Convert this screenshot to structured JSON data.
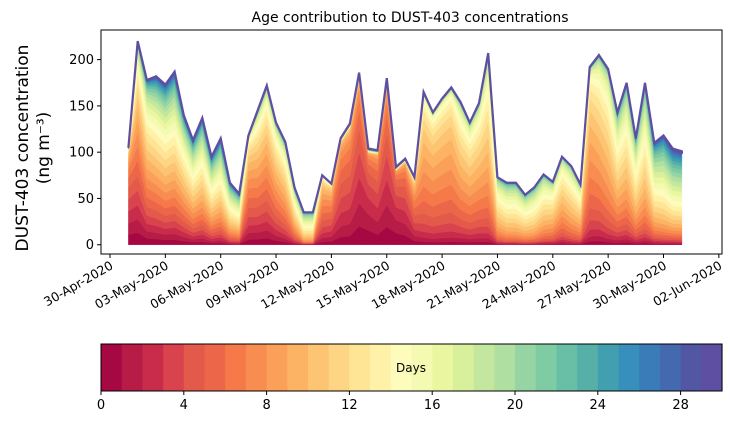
{
  "chart_data": {
    "type": "area",
    "stacked": true,
    "title": "Age contribution to DUST-403 concentrations",
    "ylabel_line1": "DUST-403 concentration",
    "ylabel_line2": "(ng m⁻³)",
    "xlabel": "",
    "ylim": [
      -10,
      232
    ],
    "yticks": [
      0,
      50,
      100,
      150,
      200
    ],
    "x_origin_date": "30-Apr-2020",
    "xlim_days": [
      -0.5,
      33.1
    ],
    "xticks": [
      {
        "day": 0,
        "label": "30-Apr-2020"
      },
      {
        "day": 3,
        "label": "03-May-2020"
      },
      {
        "day": 6,
        "label": "06-May-2020"
      },
      {
        "day": 9,
        "label": "09-May-2020"
      },
      {
        "day": 12,
        "label": "12-May-2020"
      },
      {
        "day": 15,
        "label": "15-May-2020"
      },
      {
        "day": 18,
        "label": "18-May-2020"
      },
      {
        "day": 21,
        "label": "21-May-2020"
      },
      {
        "day": 24,
        "label": "24-May-2020"
      },
      {
        "day": 27,
        "label": "27-May-2020"
      },
      {
        "day": 30,
        "label": "30-May-2020"
      },
      {
        "day": 33,
        "label": "02-Jun-2020"
      }
    ],
    "series_bins": 30,
    "series_name_prefix": "Age (days)",
    "x_days": [
      1.0,
      1.5,
      2.0,
      2.5,
      3.0,
      3.5,
      4.0,
      4.5,
      5.0,
      5.5,
      6.0,
      6.5,
      7.0,
      7.5,
      8.0,
      8.5,
      9.0,
      9.5,
      10.0,
      10.5,
      11.0,
      11.5,
      12.0,
      12.5,
      13.0,
      13.5,
      14.0,
      14.5,
      15.0,
      15.5,
      16.0,
      16.5,
      17.0,
      17.5,
      18.0,
      18.5,
      19.0,
      19.5,
      20.0,
      20.5,
      21.0,
      21.5,
      22.0,
      22.5,
      23.0,
      23.5,
      24.0,
      24.5,
      25.0,
      25.5,
      26.0,
      26.5,
      27.0,
      27.5,
      28.0,
      28.5,
      29.0,
      29.5,
      30.0,
      30.5,
      31.0
    ],
    "total": [
      105,
      220,
      178,
      182,
      173,
      187,
      140,
      113,
      137,
      95,
      115,
      67,
      55,
      118,
      145,
      172,
      132,
      111,
      62,
      35,
      35,
      75,
      66,
      115,
      131,
      186,
      104,
      102,
      180,
      84,
      93,
      73,
      165,
      143,
      158,
      170,
      154,
      132,
      153,
      207,
      73,
      67,
      67,
      54,
      62,
      76,
      68,
      95,
      85,
      65,
      192,
      205,
      190,
      143,
      175,
      115,
      175,
      110,
      118,
      104,
      101
    ],
    "age_peak_days": [
      3,
      5,
      8,
      9,
      10,
      10,
      10,
      11,
      11,
      12,
      12,
      13,
      13,
      6,
      7,
      7,
      8,
      9,
      11,
      14,
      14,
      6,
      5,
      4,
      4,
      3,
      2,
      3,
      3,
      2,
      3,
      5,
      8,
      8,
      8,
      8,
      9,
      9,
      9,
      10,
      12,
      13,
      13,
      13,
      13,
      12,
      11,
      10,
      11,
      11,
      8,
      9,
      10,
      11,
      11,
      12,
      12,
      14,
      15,
      16,
      16
    ],
    "age_spread_days": [
      4,
      7,
      8,
      9,
      9,
      9,
      8,
      8,
      8,
      8,
      8,
      7,
      7,
      5,
      6,
      6,
      6,
      6,
      6,
      5,
      5,
      4,
      4,
      3,
      3,
      3,
      3,
      3,
      3,
      3,
      3,
      4,
      4,
      4,
      4,
      4,
      5,
      5,
      5,
      5,
      5,
      5,
      5,
      5,
      5,
      5,
      5,
      5,
      5,
      5,
      4,
      5,
      5,
      6,
      6,
      6,
      6,
      7,
      7,
      8,
      8
    ],
    "colorbar": {
      "label": "Days",
      "range": [
        0,
        30
      ],
      "ticks": [
        0,
        4,
        8,
        12,
        16,
        20,
        24,
        28
      ],
      "colors": [
        "#a50843",
        "#b71c47",
        "#c92b4a",
        "#d8434d",
        "#e45a4a",
        "#ec6749",
        "#f57949",
        "#f88d51",
        "#fba059",
        "#fcb363",
        "#fdc473",
        "#fdd584",
        "#fee595",
        "#fff2a8",
        "#fefcbd",
        "#f5fab3",
        "#ebf7a0",
        "#d8ef9b",
        "#c3e79f",
        "#b0dfa2",
        "#97d4a4",
        "#7ecba4",
        "#69bfa5",
        "#56b0a8",
        "#419fb0",
        "#3690bb",
        "#3a7cb8",
        "#4569ae",
        "#5157a2",
        "#5e4fa2"
      ]
    },
    "grid": false,
    "legend": "none"
  }
}
